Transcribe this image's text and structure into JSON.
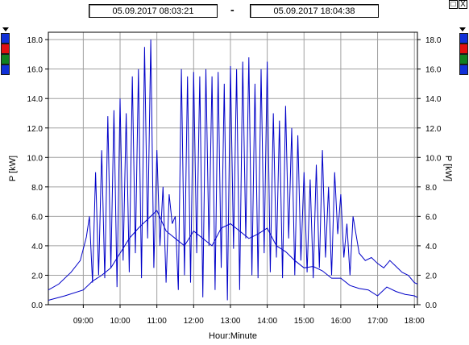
{
  "header": {
    "start": "05.09.2017    08:03:21",
    "separator": "-",
    "end": "05.09.2017    18:04:38"
  },
  "window_buttons": {
    "restore": "□",
    "close": "X"
  },
  "swatches": {
    "left": [
      "#1030d8",
      "#e01010",
      "#108020",
      "#1030d8"
    ],
    "right": [
      "#1030d8",
      "#e01010",
      "#108020",
      "#1030d8"
    ]
  },
  "chart_data": {
    "type": "line",
    "xlabel": "Hour:Minute",
    "ylabel": "P [kW]",
    "ylabel_right": "P [kW]",
    "xlim": [
      "08:03",
      "18:05"
    ],
    "ylim": [
      0,
      18.5
    ],
    "xticks": [
      "09:00",
      "10:00",
      "11:00",
      "12:00",
      "13:00",
      "14:00",
      "15:00",
      "16:00",
      "17:00",
      "18:00"
    ],
    "yticks": [
      "0.0",
      "2.0",
      "4.0",
      "6.0",
      "8.0",
      "10.0",
      "12.0",
      "14.0",
      "16.0",
      "18.0"
    ],
    "grid": true,
    "series": [
      {
        "color": "#0000c8",
        "x": [
          "08:03",
          "08:20",
          "08:40",
          "08:55",
          "09:05",
          "09:10",
          "09:15",
          "09:20",
          "09:25",
          "09:30",
          "09:35",
          "09:40",
          "09:45",
          "09:50",
          "09:55",
          "10:00",
          "10:05",
          "10:10",
          "10:15",
          "10:20",
          "10:25",
          "10:30",
          "10:35",
          "10:40",
          "10:45",
          "10:50",
          "10:55",
          "11:00",
          "11:05",
          "11:10",
          "11:15",
          "11:20",
          "11:25",
          "11:30",
          "11:35",
          "11:40",
          "11:45",
          "11:50",
          "11:55",
          "12:00",
          "12:05",
          "12:10",
          "12:15",
          "12:20",
          "12:25",
          "12:30",
          "12:35",
          "12:40",
          "12:45",
          "12:50",
          "12:55",
          "13:00",
          "13:05",
          "13:10",
          "13:15",
          "13:20",
          "13:25",
          "13:30",
          "13:35",
          "13:40",
          "13:45",
          "13:50",
          "13:55",
          "14:00",
          "14:05",
          "14:10",
          "14:15",
          "14:20",
          "14:25",
          "14:30",
          "14:35",
          "14:40",
          "14:45",
          "14:50",
          "14:55",
          "15:00",
          "15:05",
          "15:10",
          "15:15",
          "15:20",
          "15:25",
          "15:30",
          "15:35",
          "15:40",
          "15:45",
          "15:50",
          "15:55",
          "16:00",
          "16:05",
          "16:10",
          "16:15",
          "16:20",
          "16:30",
          "16:40",
          "16:50",
          "17:00",
          "17:10",
          "17:20",
          "17:30",
          "17:40",
          "17:50",
          "18:00",
          "18:05"
        ],
        "y": [
          1.0,
          1.4,
          2.2,
          3.0,
          4.6,
          6.0,
          1.5,
          9.0,
          2.0,
          10.5,
          1.8,
          12.8,
          2.5,
          13.2,
          1.2,
          14.0,
          3.0,
          13.0,
          2.2,
          15.5,
          3.5,
          16.0,
          1.8,
          17.5,
          4.5,
          18.0,
          2.5,
          10.5,
          4.0,
          8.0,
          1.5,
          7.5,
          5.5,
          6.0,
          1.0,
          16.0,
          2.0,
          15.5,
          1.5,
          15.8,
          3.5,
          15.5,
          0.5,
          16.0,
          4.0,
          15.5,
          1.0,
          15.8,
          2.5,
          15.0,
          0.3,
          16.2,
          3.8,
          16.0,
          1.0,
          16.5,
          4.5,
          16.8,
          2.0,
          15.0,
          1.8,
          16.0,
          3.5,
          16.5,
          2.2,
          13.0,
          3.2,
          12.5,
          1.8,
          13.5,
          4.5,
          12.0,
          2.0,
          11.5,
          3.0,
          9.0,
          2.2,
          8.5,
          1.8,
          9.5,
          2.5,
          10.5,
          3.2,
          8.0,
          2.0,
          9.0,
          4.8,
          7.5,
          3.2,
          5.5,
          2.0,
          6.0,
          3.5,
          3.0,
          3.2,
          2.8,
          2.5,
          3.0,
          2.6,
          2.2,
          2.0,
          1.5,
          1.4
        ]
      },
      {
        "color": "#0000c8",
        "x": [
          "08:03",
          "08:30",
          "09:00",
          "09:15",
          "09:30",
          "09:45",
          "10:00",
          "10:15",
          "10:30",
          "10:45",
          "11:00",
          "11:15",
          "11:30",
          "11:45",
          "12:00",
          "12:15",
          "12:30",
          "12:45",
          "13:00",
          "13:15",
          "13:30",
          "13:45",
          "14:00",
          "14:15",
          "14:30",
          "14:45",
          "15:00",
          "15:15",
          "15:30",
          "15:45",
          "16:00",
          "16:15",
          "16:30",
          "16:45",
          "17:00",
          "17:15",
          "17:30",
          "17:45",
          "18:00",
          "18:05"
        ],
        "y": [
          0.3,
          0.6,
          1.0,
          1.6,
          2.0,
          2.5,
          3.5,
          4.5,
          5.2,
          5.8,
          6.4,
          5.0,
          4.5,
          4.0,
          5.0,
          4.5,
          4.0,
          5.2,
          5.5,
          5.0,
          4.5,
          4.8,
          5.2,
          4.0,
          3.6,
          3.0,
          2.5,
          2.6,
          2.3,
          1.8,
          1.8,
          1.3,
          1.1,
          1.0,
          0.6,
          1.2,
          0.9,
          0.7,
          0.6,
          0.5
        ]
      }
    ]
  }
}
